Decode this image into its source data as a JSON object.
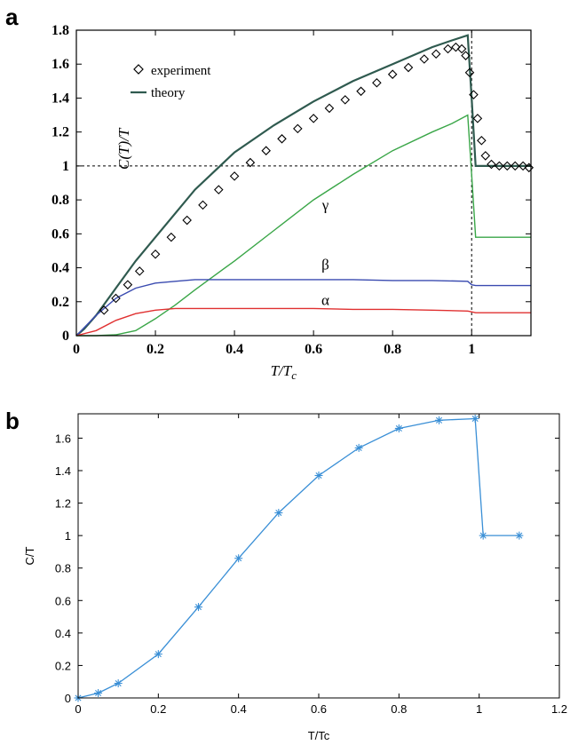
{
  "chart_data": [
    {
      "panel_label": "a",
      "type": "line",
      "xlabel": "T/T",
      "xlabel_sub": "c",
      "ylabel": "C(T)/T",
      "xlim": [
        0,
        1.15
      ],
      "ylim": [
        0,
        1.8
      ],
      "x_ticks": [
        0,
        0.2,
        0.4,
        0.6,
        0.8,
        1
      ],
      "x_tick_labels": [
        "0",
        "0.2",
        "0.4",
        "0.6",
        "0.8",
        "1"
      ],
      "y_ticks": [
        0,
        0.2,
        0.4,
        0.6,
        0.8,
        1,
        1.2,
        1.4,
        1.6,
        1.8
      ],
      "y_tick_labels": [
        "0",
        "0.2",
        "0.4",
        "0.6",
        "0.8",
        "1",
        "1.2",
        "1.4",
        "1.6",
        "1.8"
      ],
      "grid": false,
      "legend_position": "top-left",
      "legend": [
        {
          "label": "experiment",
          "marker": "diamond",
          "color": "#000000"
        },
        {
          "label": "theory",
          "marker": "line",
          "color": "#2f5a4f"
        }
      ],
      "reference_lines": [
        {
          "orientation": "horizontal",
          "value": 1,
          "style": "dashed"
        },
        {
          "orientation": "vertical",
          "value": 1,
          "style": "dashed"
        }
      ],
      "annotations": [
        {
          "text": "γ",
          "x": 0.63,
          "y": 0.74
        },
        {
          "text": "β",
          "x": 0.63,
          "y": 0.39
        },
        {
          "text": "α",
          "x": 0.63,
          "y": 0.18
        }
      ],
      "series": [
        {
          "name": "theory",
          "color": "#2f5a4f",
          "x": [
            0,
            0.02,
            0.05,
            0.1,
            0.15,
            0.2,
            0.3,
            0.4,
            0.5,
            0.6,
            0.7,
            0.8,
            0.9,
            0.95,
            0.99,
            1.0,
            1.01,
            1.05,
            1.1,
            1.15
          ],
          "y": [
            0,
            0.04,
            0.12,
            0.28,
            0.44,
            0.58,
            0.86,
            1.08,
            1.24,
            1.38,
            1.5,
            1.6,
            1.7,
            1.74,
            1.77,
            1.4,
            1.0,
            1.0,
            1.0,
            1.0
          ]
        },
        {
          "name": "γ",
          "color": "#3aa648",
          "x": [
            0,
            0.05,
            0.1,
            0.15,
            0.2,
            0.25,
            0.3,
            0.4,
            0.5,
            0.6,
            0.7,
            0.8,
            0.9,
            0.95,
            0.99,
            1.0,
            1.01,
            1.05,
            1.1,
            1.15
          ],
          "y": [
            0,
            0,
            0.005,
            0.03,
            0.1,
            0.18,
            0.27,
            0.44,
            0.62,
            0.8,
            0.95,
            1.09,
            1.2,
            1.25,
            1.3,
            0.95,
            0.58,
            0.58,
            0.58,
            0.58
          ]
        },
        {
          "name": "β",
          "color": "#3a4bb0",
          "x": [
            0,
            0.05,
            0.1,
            0.15,
            0.2,
            0.25,
            0.3,
            0.4,
            0.5,
            0.6,
            0.7,
            0.8,
            0.9,
            0.99,
            1.0,
            1.01,
            1.05,
            1.1,
            1.15
          ],
          "y": [
            0,
            0.12,
            0.22,
            0.28,
            0.31,
            0.32,
            0.33,
            0.33,
            0.33,
            0.33,
            0.33,
            0.325,
            0.325,
            0.32,
            0.3,
            0.295,
            0.295,
            0.295,
            0.295
          ]
        },
        {
          "name": "α",
          "color": "#e03030",
          "x": [
            0,
            0.05,
            0.1,
            0.15,
            0.2,
            0.25,
            0.3,
            0.4,
            0.5,
            0.6,
            0.7,
            0.8,
            0.9,
            0.99,
            1.0,
            1.01,
            1.05,
            1.1,
            1.15
          ],
          "y": [
            0,
            0.03,
            0.09,
            0.13,
            0.15,
            0.16,
            0.16,
            0.16,
            0.16,
            0.16,
            0.155,
            0.155,
            0.15,
            0.145,
            0.14,
            0.135,
            0.135,
            0.135,
            0.135
          ]
        },
        {
          "name": "experiment",
          "color": "#000000",
          "marker": "diamond",
          "x": [
            0.07,
            0.1,
            0.13,
            0.16,
            0.2,
            0.24,
            0.28,
            0.32,
            0.36,
            0.4,
            0.44,
            0.48,
            0.52,
            0.56,
            0.6,
            0.64,
            0.68,
            0.72,
            0.76,
            0.8,
            0.84,
            0.88,
            0.91,
            0.94,
            0.96,
            0.975,
            0.985,
            0.995,
            1.005,
            1.015,
            1.025,
            1.035,
            1.05,
            1.07,
            1.09,
            1.11,
            1.13,
            1.145
          ],
          "y": [
            0.15,
            0.22,
            0.3,
            0.38,
            0.48,
            0.58,
            0.68,
            0.77,
            0.86,
            0.94,
            1.02,
            1.09,
            1.16,
            1.22,
            1.28,
            1.34,
            1.39,
            1.44,
            1.49,
            1.54,
            1.58,
            1.63,
            1.66,
            1.69,
            1.7,
            1.69,
            1.65,
            1.55,
            1.42,
            1.28,
            1.15,
            1.06,
            1.01,
            1.0,
            1.0,
            1.0,
            1.0,
            0.99
          ]
        }
      ]
    },
    {
      "panel_label": "b",
      "type": "line",
      "xlabel": "T/Tc",
      "ylabel": "C/T",
      "xlim": [
        0,
        1.2
      ],
      "ylim": [
        0,
        1.75
      ],
      "x_ticks": [
        0,
        0.2,
        0.4,
        0.6,
        0.8,
        1,
        1.2
      ],
      "x_tick_labels": [
        "0",
        "0.2",
        "0.4",
        "0.6",
        "0.8",
        "1",
        "1.2"
      ],
      "y_ticks": [
        0,
        0.2,
        0.4,
        0.6,
        0.8,
        1,
        1.2,
        1.4,
        1.6
      ],
      "y_tick_labels": [
        "0",
        "0.2",
        "0.4",
        "0.6",
        "0.8",
        "1",
        "1.2",
        "1.4",
        "1.6"
      ],
      "grid": false,
      "series": [
        {
          "color": "#3a8fd6",
          "marker": "asterisk",
          "x": [
            0,
            0.05,
            0.1,
            0.2,
            0.3,
            0.4,
            0.5,
            0.6,
            0.7,
            0.8,
            0.9,
            0.99,
            1.01,
            1.1
          ],
          "y": [
            0,
            0.03,
            0.09,
            0.27,
            0.56,
            0.86,
            1.14,
            1.37,
            1.54,
            1.66,
            1.71,
            1.72,
            1.0,
            1.0
          ]
        }
      ]
    }
  ]
}
